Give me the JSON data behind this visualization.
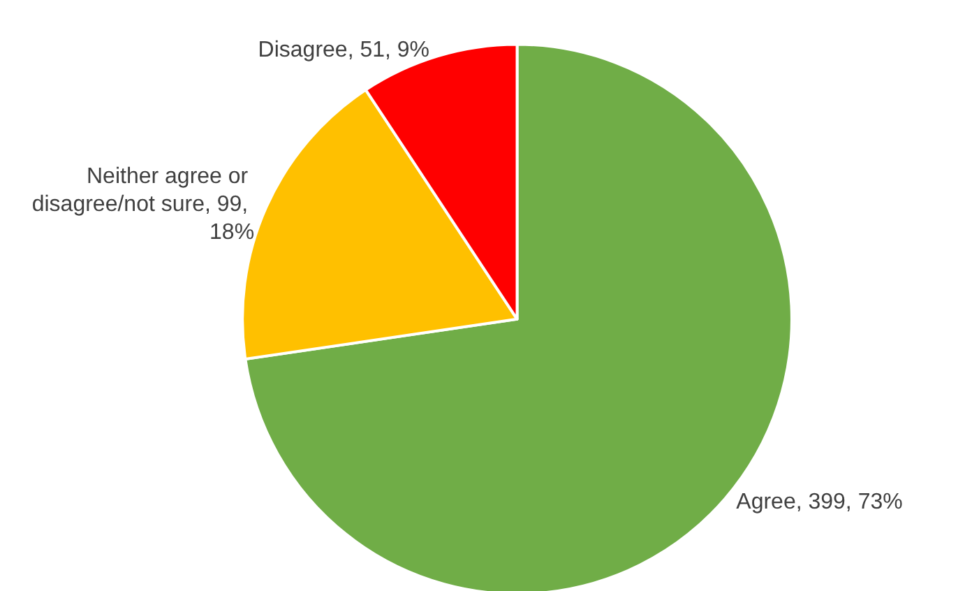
{
  "chart_data": {
    "type": "pie",
    "categories": [
      "Agree",
      "Neither agree or disagree/not sure",
      "Disagree"
    ],
    "values": [
      399,
      99,
      51
    ],
    "colors": [
      "#70ad47",
      "#ffc000",
      "#ff0000"
    ],
    "value_labels": [
      "399, 73%",
      "99, 18%",
      "51, 9%"
    ],
    "legend": false
  }
}
